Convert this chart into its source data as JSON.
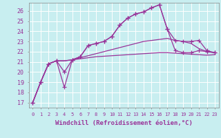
{
  "background_color": "#c8eef0",
  "grid_color": "#ffffff",
  "line_color": "#993399",
  "xlabel": "Windchill (Refroidissement éolien,°C)",
  "xlabel_fontsize": 6.5,
  "ylabel_values": [
    17,
    18,
    19,
    20,
    21,
    22,
    23,
    24,
    25,
    26
  ],
  "xlim": [
    -0.5,
    23.5
  ],
  "ylim": [
    16.5,
    26.8
  ],
  "xtick_labels": [
    "0",
    "1",
    "2",
    "3",
    "4",
    "5",
    "6",
    "7",
    "8",
    "9",
    "10",
    "11",
    "12",
    "13",
    "14",
    "15",
    "16",
    "17",
    "18",
    "19",
    "20",
    "21",
    "22",
    "23"
  ],
  "series": [
    {
      "x": [
        0,
        1,
        2,
        3,
        4,
        5,
        6,
        7,
        8,
        9,
        10,
        11,
        12,
        13,
        14,
        15,
        16,
        17,
        18,
        19,
        20,
        21,
        22,
        23
      ],
      "y": [
        17.0,
        19.0,
        20.8,
        21.1,
        18.5,
        21.2,
        21.5,
        22.6,
        22.8,
        23.0,
        23.5,
        24.6,
        25.3,
        25.7,
        25.9,
        26.3,
        26.6,
        24.2,
        22.1,
        21.9,
        21.9,
        22.1,
        22.0,
        21.9
      ],
      "marker": "+",
      "markersize": 4,
      "linewidth": 0.9
    },
    {
      "x": [
        0,
        1,
        2,
        3,
        4,
        5,
        6,
        7,
        8,
        9,
        10,
        11,
        12,
        13,
        14,
        15,
        16,
        17,
        18,
        19,
        20,
        21,
        22,
        23
      ],
      "y": [
        17.0,
        19.0,
        20.8,
        21.1,
        20.0,
        21.2,
        21.5,
        22.6,
        22.8,
        23.0,
        23.5,
        24.6,
        25.3,
        25.7,
        25.9,
        26.3,
        26.6,
        24.2,
        23.1,
        23.0,
        23.0,
        23.1,
        22.1,
        21.9
      ],
      "marker": "+",
      "markersize": 4,
      "linewidth": 0.9
    },
    {
      "x": [
        0,
        1,
        2,
        3,
        4,
        5,
        6,
        7,
        8,
        9,
        10,
        11,
        12,
        13,
        14,
        15,
        16,
        17,
        18,
        19,
        20,
        21,
        22,
        23
      ],
      "y": [
        17.0,
        19.0,
        20.8,
        21.1,
        21.1,
        21.2,
        21.4,
        21.6,
        21.8,
        22.0,
        22.2,
        22.4,
        22.6,
        22.8,
        23.0,
        23.1,
        23.2,
        23.3,
        23.1,
        23.0,
        22.8,
        22.3,
        22.0,
        21.9
      ],
      "marker": null,
      "markersize": 0,
      "linewidth": 0.9
    },
    {
      "x": [
        0,
        1,
        2,
        3,
        4,
        5,
        6,
        7,
        8,
        9,
        10,
        11,
        12,
        13,
        14,
        15,
        16,
        17,
        18,
        19,
        20,
        21,
        22,
        23
      ],
      "y": [
        17.0,
        19.0,
        20.8,
        21.1,
        21.1,
        21.2,
        21.3,
        21.4,
        21.5,
        21.55,
        21.6,
        21.65,
        21.7,
        21.75,
        21.8,
        21.85,
        21.9,
        21.9,
        21.85,
        21.8,
        21.75,
        21.7,
        21.65,
        21.7
      ],
      "marker": null,
      "markersize": 0,
      "linewidth": 0.9
    }
  ]
}
